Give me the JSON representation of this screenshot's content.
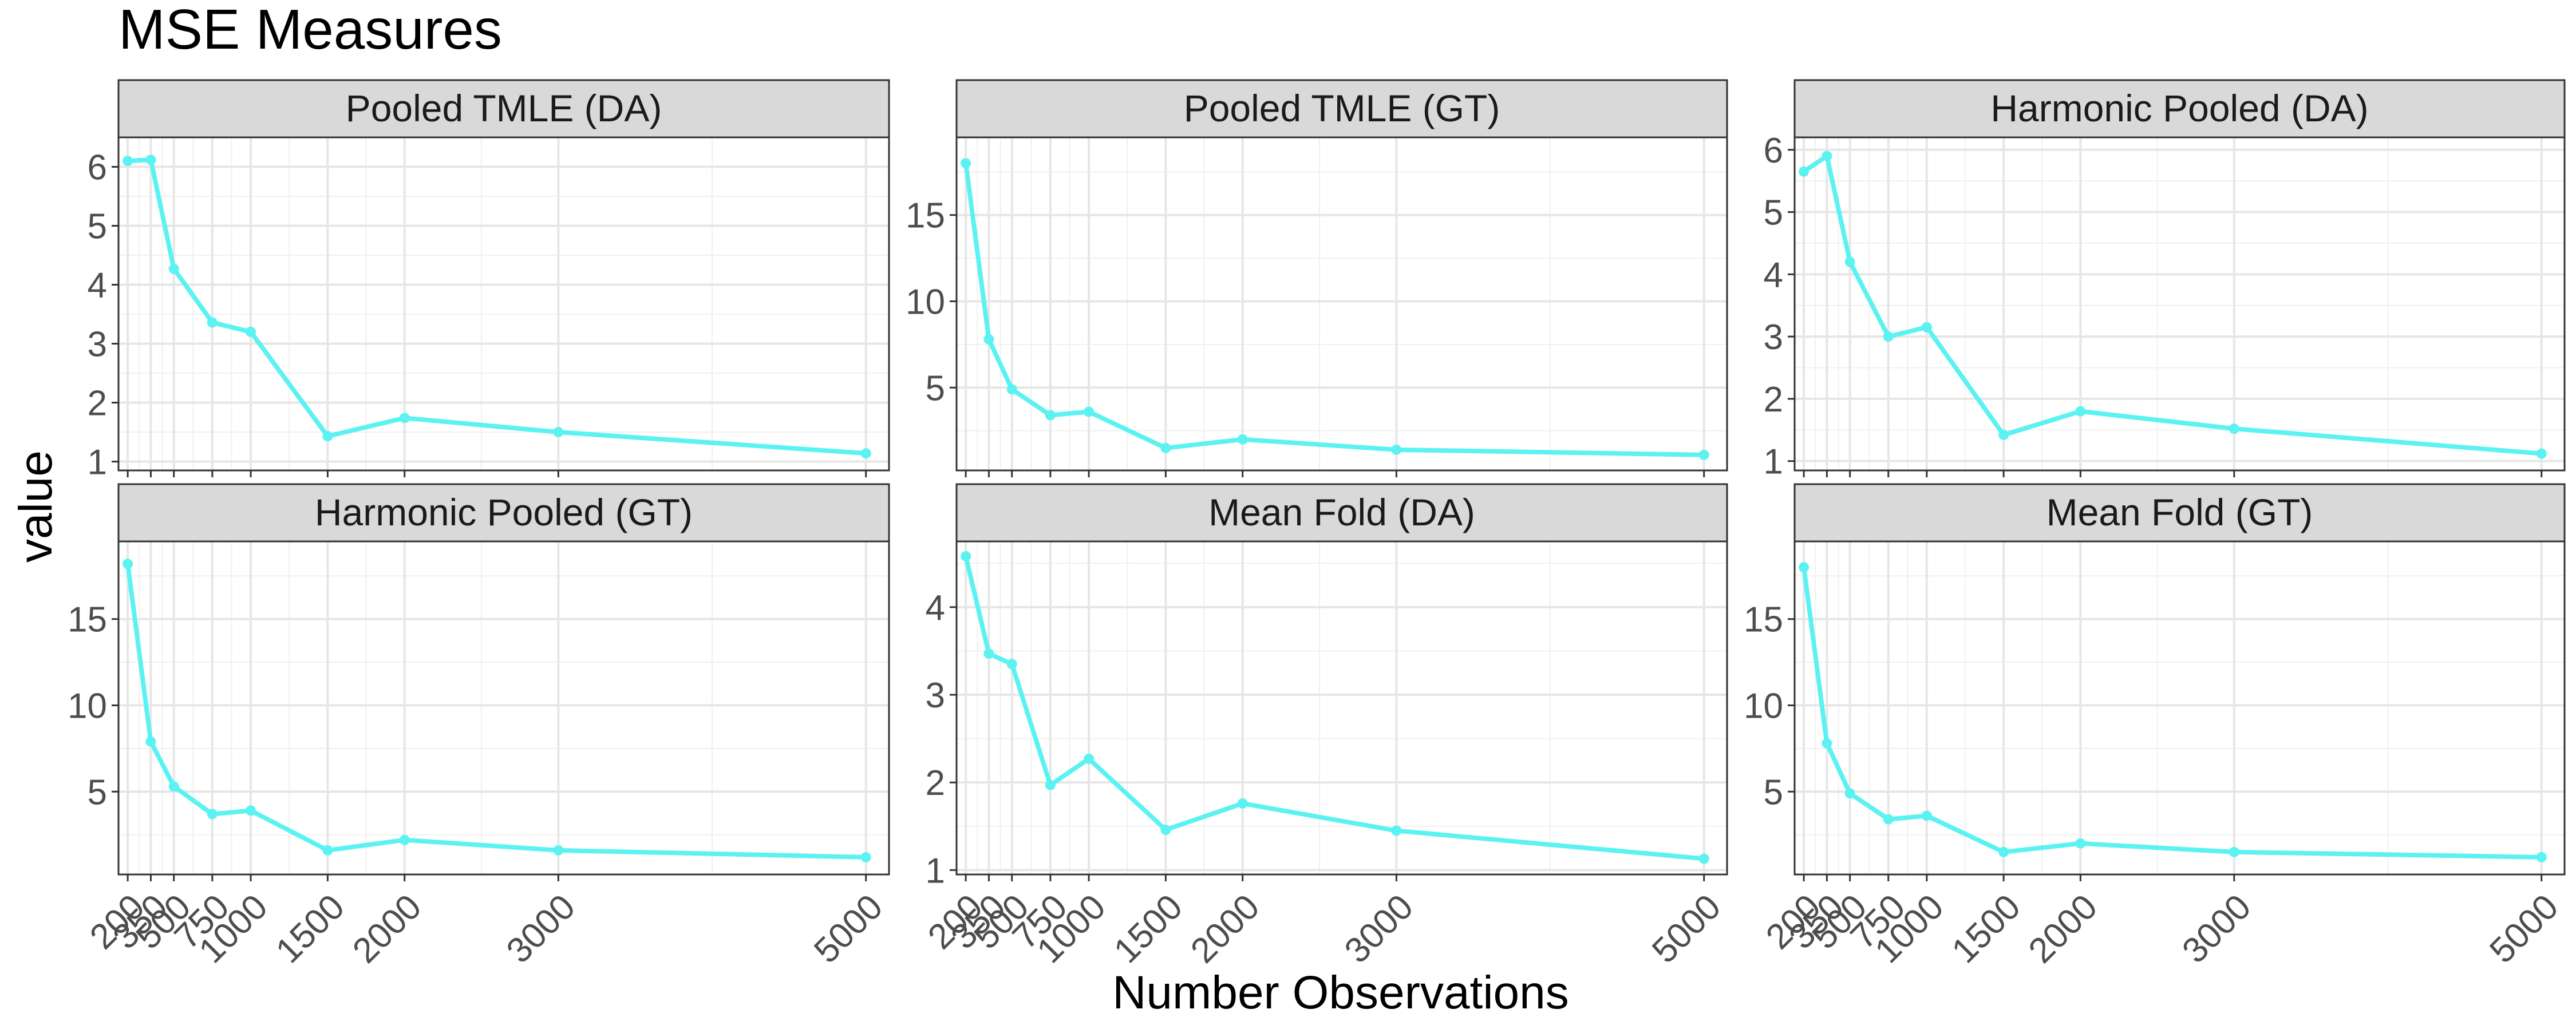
{
  "chart_data": {
    "type": "line",
    "title": "MSE Measures",
    "xlabel": "Number Observations",
    "ylabel": "value",
    "grid": true,
    "line_color": "#5cf2f2",
    "strip_fill": "#d9d9d9",
    "x_ticks": [
      200,
      350,
      500,
      750,
      1000,
      1500,
      2000,
      3000,
      5000
    ],
    "panels": [
      {
        "title": "Pooled TMLE (DA)",
        "ylim": [
          0.85,
          6.5
        ],
        "y_ticks": [
          1,
          2,
          3,
          4,
          5,
          6
        ],
        "x": [
          200,
          350,
          500,
          750,
          1000,
          1500,
          2000,
          3000,
          5000
        ],
        "values": [
          6.1,
          6.12,
          4.27,
          3.36,
          3.2,
          1.43,
          1.74,
          1.5,
          1.14
        ]
      },
      {
        "title": "Pooled TMLE (GT)",
        "ylim": [
          0.2,
          19.5
        ],
        "y_ticks": [
          5,
          10,
          15
        ],
        "x": [
          200,
          350,
          500,
          750,
          1000,
          1500,
          2000,
          3000,
          5000
        ],
        "values": [
          18.0,
          7.8,
          4.9,
          3.4,
          3.6,
          1.5,
          2.0,
          1.4,
          1.1
        ]
      },
      {
        "title": "Harmonic Pooled (DA)",
        "ylim": [
          0.85,
          6.2
        ],
        "y_ticks": [
          1,
          2,
          3,
          4,
          5,
          6
        ],
        "x": [
          200,
          350,
          500,
          750,
          1000,
          1500,
          2000,
          3000,
          5000
        ],
        "values": [
          5.65,
          5.9,
          4.2,
          3.0,
          3.15,
          1.42,
          1.8,
          1.52,
          1.12
        ]
      },
      {
        "title": "Harmonic Pooled (GT)",
        "ylim": [
          0.2,
          19.5
        ],
        "y_ticks": [
          5,
          10,
          15
        ],
        "x": [
          200,
          350,
          500,
          750,
          1000,
          1500,
          2000,
          3000,
          5000
        ],
        "values": [
          18.2,
          7.9,
          5.3,
          3.7,
          3.9,
          1.6,
          2.2,
          1.6,
          1.2
        ]
      },
      {
        "title": "Mean Fold (DA)",
        "ylim": [
          0.95,
          4.75
        ],
        "y_ticks": [
          1,
          2,
          3,
          4
        ],
        "x": [
          200,
          350,
          500,
          750,
          1000,
          1500,
          2000,
          3000,
          5000
        ],
        "values": [
          4.58,
          3.47,
          3.35,
          1.97,
          2.27,
          1.46,
          1.76,
          1.45,
          1.13
        ]
      },
      {
        "title": "Mean Fold (GT)",
        "ylim": [
          0.2,
          19.5
        ],
        "y_ticks": [
          5,
          10,
          15
        ],
        "x": [
          200,
          350,
          500,
          750,
          1000,
          1500,
          2000,
          3000,
          5000
        ],
        "values": [
          18.0,
          7.8,
          4.9,
          3.4,
          3.6,
          1.5,
          2.0,
          1.5,
          1.2
        ]
      }
    ]
  }
}
